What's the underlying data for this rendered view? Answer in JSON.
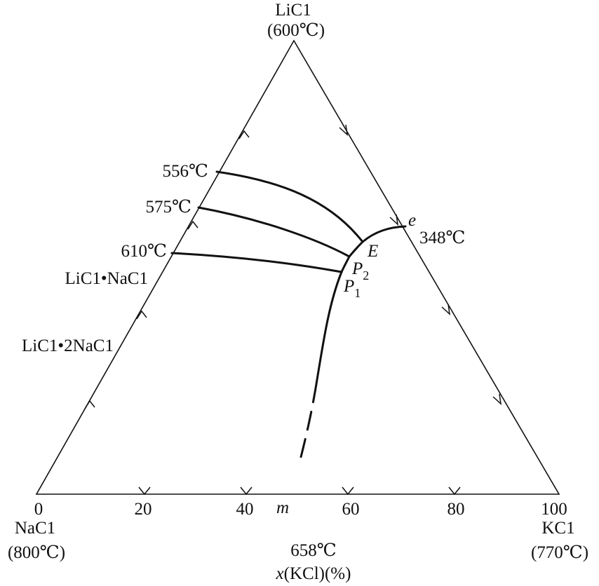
{
  "vertices": {
    "top": {
      "name": "LiC1",
      "temp": "(600℃)"
    },
    "left": {
      "name": "NaC1",
      "temp": "(800℃)"
    },
    "right": {
      "name": "KC1",
      "temp": "(770℃)"
    }
  },
  "x_axis": {
    "ticks": [
      "0",
      "20",
      "40",
      "60",
      "80",
      "100"
    ],
    "title": "x(KCl)(%)",
    "title_italic_part": "x",
    "title_rest": "(KCl)(%)",
    "point_m": "m",
    "point_m_temp": "658℃"
  },
  "left_side_labels": {
    "t556": "556℃",
    "t575": "575℃",
    "t610": "610℃",
    "compound1": "LiC1•NaC1",
    "compound2": "LiC1•2NaC1"
  },
  "points": {
    "e": "e",
    "e_temp": "348℃",
    "E": "E",
    "P2_base": "P",
    "P2_sub": "2",
    "P1_base": "P",
    "P1_sub": "1"
  },
  "colors": {
    "line": "#111111",
    "background": "#ffffff"
  }
}
